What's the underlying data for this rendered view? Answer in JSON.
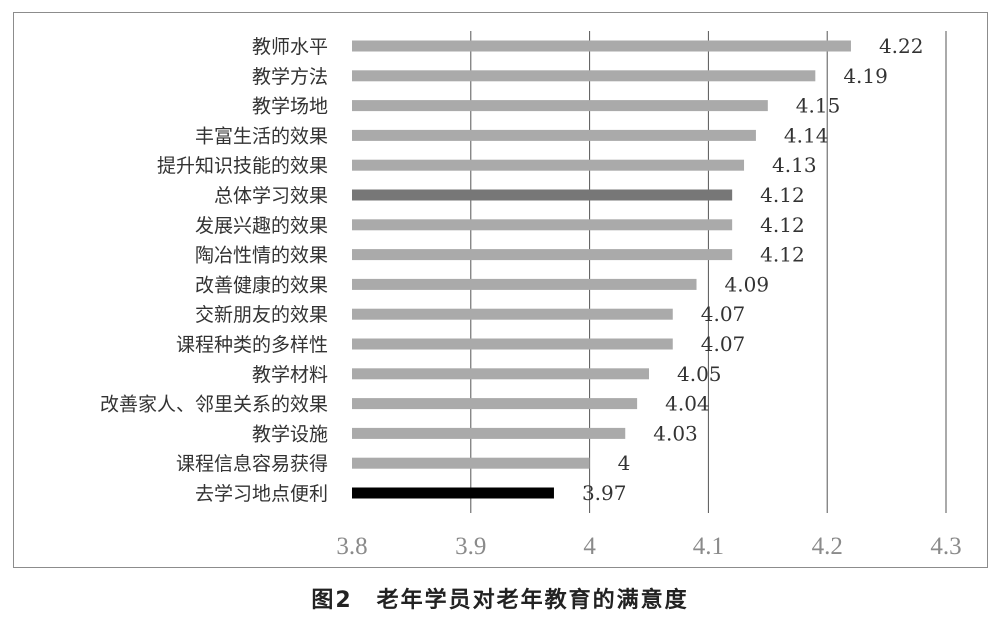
{
  "caption": "图2　老年学员对老年教育的满意度",
  "chart_data": {
    "type": "bar",
    "orientation": "horizontal",
    "categories": [
      "教师水平",
      "教学方法",
      "教学场地",
      "丰富生活的效果",
      "提升知识技能的效果",
      "总体学习效果",
      "发展兴趣的效果",
      "陶冶性情的效果",
      "改善健康的效果",
      "交新朋友的效果",
      "课程种类的多样性",
      "教学材料",
      "改善家人、邻里关系的效果",
      "教学设施",
      "课程信息容易获得",
      "去学习地点便利"
    ],
    "values": [
      4.22,
      4.19,
      4.15,
      4.14,
      4.13,
      4.12,
      4.12,
      4.12,
      4.09,
      4.07,
      4.07,
      4.05,
      4.04,
      4.03,
      4,
      3.97
    ],
    "value_labels": [
      "4.22",
      "4.19",
      "4.15",
      "4.14",
      "4.13",
      "4.12",
      "4.12",
      "4.12",
      "4.09",
      "4.07",
      "4.07",
      "4.05",
      "4.04",
      "4.03",
      "4",
      "3.97"
    ],
    "bar_colors": [
      "#aaaaaa",
      "#aaaaaa",
      "#aaaaaa",
      "#aaaaaa",
      "#aaaaaa",
      "#777777",
      "#aaaaaa",
      "#aaaaaa",
      "#aaaaaa",
      "#aaaaaa",
      "#aaaaaa",
      "#aaaaaa",
      "#aaaaaa",
      "#aaaaaa",
      "#aaaaaa",
      "#000000"
    ],
    "xlim": [
      3.8,
      4.3
    ],
    "x_ticks": [
      "3.8",
      "3.9",
      "4",
      "4.1",
      "4.2",
      "4.3"
    ],
    "x_tick_values": [
      3.8,
      3.9,
      4,
      4.1,
      4.2,
      4.3
    ],
    "grid": "vertical",
    "title": "",
    "xlabel": "",
    "ylabel": ""
  }
}
